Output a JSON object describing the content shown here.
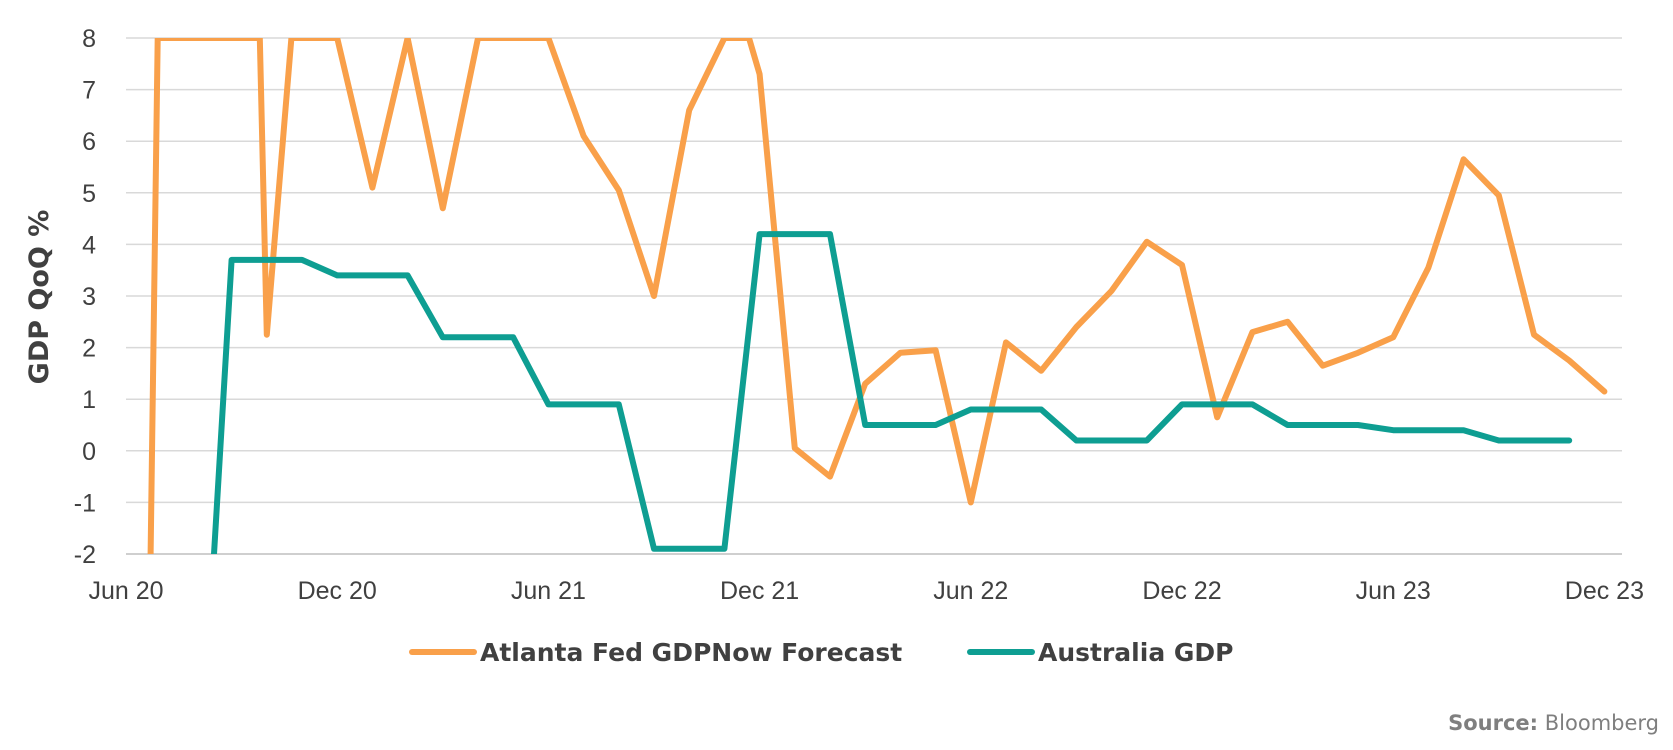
{
  "chart_data": {
    "type": "line",
    "title": "",
    "xlabel": "",
    "ylabel": "GDP QoQ %",
    "ylim": [
      -2,
      8
    ],
    "yticks": [
      -2,
      -1,
      0,
      1,
      2,
      3,
      4,
      5,
      6,
      7,
      8
    ],
    "xlim": [
      0,
      42.5
    ],
    "xticks": [
      {
        "label": "Jun 20",
        "month": 0
      },
      {
        "label": "Dec 20",
        "month": 6
      },
      {
        "label": "Jun 21",
        "month": 12
      },
      {
        "label": "Dec 21",
        "month": 18
      },
      {
        "label": "Jun 22",
        "month": 24
      },
      {
        "label": "Dec 22",
        "month": 30
      },
      {
        "label": "Jun 23",
        "month": 36
      },
      {
        "label": "Dec 23",
        "month": 42
      }
    ],
    "grid": true,
    "legend": "bottom",
    "series": [
      {
        "name": "Atlanta Fed GDPNow Forecast",
        "color": "#F9A04A",
        "x": [
          0.7,
          0.9,
          3.8,
          4.0,
          4.7,
          6.0,
          7.0,
          8.0,
          9.0,
          10.0,
          12.0,
          13.0,
          14.0,
          15.0,
          16.0,
          17.0,
          17.7,
          18.0,
          19.0,
          20.0,
          21.0,
          22.0,
          23.0,
          24.0,
          25.0,
          26.0,
          27.0,
          28.0,
          29.0,
          30.0,
          31.0,
          32.0,
          33.0,
          34.0,
          35.0,
          36.0,
          37.0,
          38.0,
          39.0,
          40.0,
          41.0,
          42.0
        ],
        "values": [
          -2,
          8,
          8,
          2.25,
          8,
          8,
          5.1,
          8,
          4.7,
          8,
          8,
          6.1,
          5.05,
          3.0,
          6.6,
          8.0,
          8.0,
          7.3,
          0.05,
          -0.5,
          1.3,
          1.9,
          1.95,
          -1.0,
          2.1,
          1.55,
          2.4,
          3.1,
          4.05,
          3.6,
          0.65,
          2.3,
          2.5,
          1.65,
          1.9,
          2.2,
          3.55,
          5.65,
          4.95,
          2.25,
          1.75,
          1.15
        ]
      },
      {
        "name": "Australia GDP",
        "color": "#0E9E92",
        "x": [
          2.5,
          3.0,
          5.0,
          6.0,
          8.0,
          9.0,
          11.0,
          12.0,
          14.0,
          15.0,
          17.0,
          18.0,
          20.0,
          21.0,
          23.0,
          24.0,
          26.0,
          27.0,
          29.0,
          30.0,
          32.0,
          33.0,
          35.0,
          36.0,
          38.0,
          39.0,
          41.0
        ],
        "values": [
          -2,
          3.7,
          3.7,
          3.4,
          3.4,
          2.2,
          2.2,
          0.9,
          0.9,
          -1.9,
          -1.9,
          4.2,
          4.2,
          0.5,
          0.5,
          0.8,
          0.8,
          0.2,
          0.2,
          0.9,
          0.9,
          0.5,
          0.5,
          0.4,
          0.4,
          0.2,
          0.2
        ]
      }
    ]
  },
  "source": {
    "label": "Source:",
    "text": "Bloomberg"
  }
}
